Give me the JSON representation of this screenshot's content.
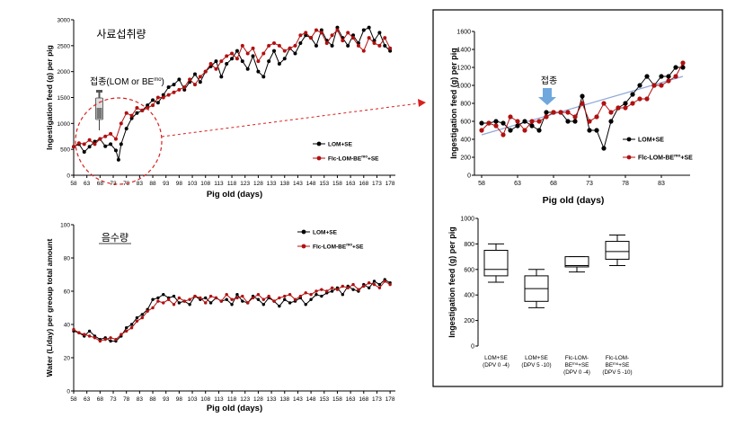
{
  "colors": {
    "lom": "#000000",
    "flc": "#b01010",
    "trend": "#8fa8d8",
    "arrow": "#6fa8dc",
    "circle": "#d82020",
    "box_border": "#000000"
  },
  "chart_data": [
    {
      "id": "feed",
      "type": "line",
      "title": "사료섭취량",
      "xlabel": "Pig old (days)",
      "ylabel": "Ingestigation feed (g) per pig",
      "xlim": [
        58,
        180
      ],
      "ylim": [
        0,
        3000
      ],
      "yticks": [
        0,
        500,
        1000,
        1500,
        2000,
        2500,
        3000
      ],
      "xticks": [
        58,
        63,
        68,
        73,
        78,
        83,
        88,
        93,
        98,
        103,
        108,
        113,
        118,
        123,
        128,
        133,
        138,
        143,
        148,
        153,
        158,
        163,
        168,
        173,
        178
      ],
      "legend": [
        "LOM+SE",
        "Flc-LOM-BE^mo+SE"
      ],
      "annotation": "접종(LOM or BE",
      "annotation_sup": "mo",
      "annotation_close": ")",
      "series": [
        {
          "name": "LOM+SE",
          "x": [
            58,
            60,
            62,
            64,
            66,
            68,
            70,
            72,
            74,
            75,
            76,
            78,
            80,
            82,
            84,
            86,
            88,
            90,
            92,
            94,
            96,
            98,
            100,
            102,
            104,
            106,
            108,
            110,
            112,
            114,
            116,
            118,
            120,
            122,
            124,
            126,
            128,
            130,
            132,
            134,
            136,
            138,
            140,
            142,
            144,
            146,
            148,
            150,
            152,
            154,
            156,
            158,
            160,
            162,
            164,
            166,
            168,
            170,
            172,
            174,
            176,
            178
          ],
          "y": [
            550,
            600,
            450,
            550,
            650,
            700,
            560,
            600,
            480,
            300,
            600,
            900,
            1100,
            1200,
            1250,
            1350,
            1450,
            1400,
            1550,
            1700,
            1750,
            1850,
            1650,
            1800,
            1950,
            1800,
            2000,
            2100,
            2200,
            1900,
            2150,
            2250,
            2400,
            2200,
            2050,
            2300,
            2000,
            1900,
            2200,
            2400,
            2150,
            2250,
            2450,
            2350,
            2550,
            2700,
            2650,
            2500,
            2800,
            2600,
            2500,
            2850,
            2650,
            2500,
            2700,
            2550,
            2800,
            2850,
            2600,
            2750,
            2500,
            2400
          ]
        },
        {
          "name": "Flc-LOM-BE^mo+SE",
          "x": [
            58,
            60,
            62,
            64,
            66,
            68,
            70,
            72,
            74,
            76,
            78,
            80,
            82,
            84,
            86,
            88,
            90,
            92,
            94,
            96,
            98,
            100,
            102,
            104,
            106,
            108,
            110,
            112,
            114,
            116,
            118,
            120,
            122,
            124,
            126,
            128,
            130,
            132,
            134,
            136,
            138,
            140,
            142,
            144,
            146,
            148,
            150,
            152,
            154,
            156,
            158,
            160,
            162,
            164,
            166,
            168,
            170,
            172,
            174,
            176,
            178
          ],
          "y": [
            550,
            620,
            600,
            680,
            600,
            700,
            750,
            800,
            700,
            1000,
            1200,
            1150,
            1300,
            1250,
            1300,
            1350,
            1500,
            1500,
            1550,
            1600,
            1650,
            1700,
            1850,
            1750,
            1900,
            2000,
            2150,
            2050,
            2200,
            2300,
            2350,
            2250,
            2500,
            2350,
            2450,
            2200,
            2350,
            2500,
            2550,
            2500,
            2400,
            2450,
            2500,
            2700,
            2750,
            2650,
            2800,
            2750,
            2550,
            2700,
            2800,
            2600,
            2750,
            2650,
            2500,
            2400,
            2650,
            2550,
            2500,
            2650,
            2450
          ]
        }
      ]
    },
    {
      "id": "water",
      "type": "line",
      "title": "음수량",
      "xlabel": "Pig old (days)",
      "ylabel": "Water (L/day) per greoup total amount",
      "xlim": [
        58,
        180
      ],
      "ylim": [
        0,
        100
      ],
      "yticks": [
        0,
        20,
        40,
        60,
        80,
        100
      ],
      "xticks": [
        58,
        63,
        68,
        73,
        78,
        83,
        88,
        93,
        98,
        103,
        108,
        113,
        118,
        123,
        128,
        133,
        138,
        143,
        148,
        153,
        158,
        163,
        168,
        173,
        178
      ],
      "legend": [
        "LOM+SE",
        "Flc-LOM-BE^mo+SE"
      ],
      "series": [
        {
          "name": "LOM+SE",
          "x": [
            58,
            60,
            62,
            64,
            66,
            68,
            70,
            72,
            74,
            76,
            78,
            80,
            82,
            84,
            86,
            88,
            90,
            92,
            94,
            96,
            98,
            100,
            102,
            104,
            106,
            108,
            110,
            112,
            114,
            116,
            118,
            120,
            122,
            124,
            126,
            128,
            130,
            132,
            134,
            136,
            138,
            140,
            142,
            144,
            146,
            148,
            150,
            152,
            154,
            156,
            158,
            160,
            162,
            164,
            166,
            168,
            170,
            172,
            174,
            176,
            178
          ],
          "y": [
            36,
            35,
            33,
            36,
            33,
            31,
            32,
            30,
            30,
            33,
            38,
            40,
            44,
            46,
            49,
            55,
            56,
            58,
            56,
            57,
            53,
            54,
            52,
            57,
            55,
            56,
            53,
            56,
            54,
            55,
            52,
            58,
            54,
            53,
            57,
            55,
            52,
            56,
            54,
            51,
            55,
            53,
            54,
            56,
            52,
            55,
            58,
            57,
            59,
            60,
            62,
            58,
            63,
            61,
            60,
            64,
            62,
            66,
            64,
            67,
            65
          ]
        },
        {
          "name": "Flc-LOM-BE^mo+SE",
          "x": [
            58,
            60,
            62,
            64,
            66,
            68,
            70,
            72,
            74,
            76,
            78,
            80,
            82,
            84,
            86,
            88,
            90,
            92,
            94,
            96,
            98,
            100,
            102,
            104,
            106,
            108,
            110,
            112,
            114,
            116,
            118,
            120,
            122,
            124,
            126,
            128,
            130,
            132,
            134,
            136,
            138,
            140,
            142,
            144,
            146,
            148,
            150,
            152,
            154,
            156,
            158,
            160,
            162,
            164,
            166,
            168,
            170,
            172,
            174,
            176,
            178
          ],
          "y": [
            37,
            35,
            34,
            33,
            32,
            30,
            31,
            32,
            31,
            34,
            36,
            38,
            42,
            44,
            48,
            50,
            54,
            53,
            55,
            52,
            56,
            54,
            55,
            57,
            56,
            53,
            57,
            56,
            54,
            58,
            55,
            56,
            57,
            53,
            56,
            58,
            55,
            57,
            54,
            56,
            57,
            58,
            55,
            57,
            59,
            58,
            60,
            61,
            60,
            62,
            61,
            63,
            62,
            64,
            61,
            63,
            65,
            64,
            62,
            66,
            64
          ]
        }
      ]
    },
    {
      "id": "zoom",
      "type": "line",
      "xlabel": "Pig old (days)",
      "ylabel": "Ingestigation feed (g) per pig",
      "xlim": [
        57,
        87
      ],
      "ylim": [
        0,
        1600
      ],
      "yticks": [
        0,
        200,
        400,
        600,
        800,
        1000,
        1200,
        1400,
        1600
      ],
      "xticks": [
        58,
        63,
        68,
        73,
        78,
        83
      ],
      "legend": [
        "LOM+SE",
        "Flc-LOM-BE^mo+SE"
      ],
      "annotation": "접종",
      "trendline": {
        "x": [
          58,
          86
        ],
        "y": [
          450,
          1100
        ]
      },
      "series": [
        {
          "name": "LOM+SE",
          "x": [
            58,
            59,
            60,
            61,
            62,
            63,
            64,
            65,
            66,
            67,
            68,
            69,
            70,
            71,
            72,
            73,
            74,
            75,
            76,
            77,
            78,
            79,
            80,
            81,
            82,
            83,
            84,
            85,
            86
          ],
          "y": [
            580,
            580,
            600,
            580,
            500,
            550,
            600,
            550,
            500,
            700,
            700,
            700,
            600,
            600,
            880,
            500,
            500,
            300,
            600,
            750,
            800,
            900,
            1000,
            1100,
            1000,
            1100,
            1100,
            1200,
            1200
          ]
        },
        {
          "name": "Flc-LOM-BE^mo+SE",
          "x": [
            58,
            59,
            60,
            61,
            62,
            63,
            64,
            65,
            66,
            67,
            68,
            69,
            70,
            71,
            72,
            73,
            74,
            75,
            76,
            77,
            78,
            79,
            80,
            81,
            82,
            83,
            84,
            85,
            86
          ],
          "y": [
            500,
            580,
            550,
            450,
            650,
            600,
            500,
            600,
            600,
            650,
            700,
            700,
            700,
            650,
            800,
            600,
            650,
            800,
            700,
            750,
            750,
            800,
            850,
            850,
            1000,
            1000,
            1050,
            1100,
            1250
          ]
        }
      ]
    },
    {
      "id": "box",
      "type": "box",
      "ylabel": "Ingestigation feed (g) per pig",
      "ylim": [
        0,
        1000
      ],
      "yticks": [
        0,
        200,
        400,
        600,
        800,
        1000
      ],
      "categories": [
        [
          "LOM+SE",
          "(DPV 0 -4)"
        ],
        [
          "LOM+SE",
          "(DPV 5 -10)"
        ],
        [
          "Flc-LOM-",
          "BE^mo+SE",
          "(DPV 0 -4)"
        ],
        [
          "Flc-LOM-",
          "BE^mo+SE",
          "(DPV 5 -10)"
        ]
      ],
      "boxes": [
        {
          "min": 500,
          "q1": 550,
          "median": 600,
          "q3": 750,
          "max": 800
        },
        {
          "min": 300,
          "q1": 350,
          "median": 450,
          "q3": 550,
          "max": 600
        },
        {
          "min": 580,
          "q1": 620,
          "median": 630,
          "q3": 700,
          "max": 700
        },
        {
          "min": 630,
          "q1": 680,
          "median": 740,
          "q3": 820,
          "max": 870
        }
      ]
    }
  ]
}
